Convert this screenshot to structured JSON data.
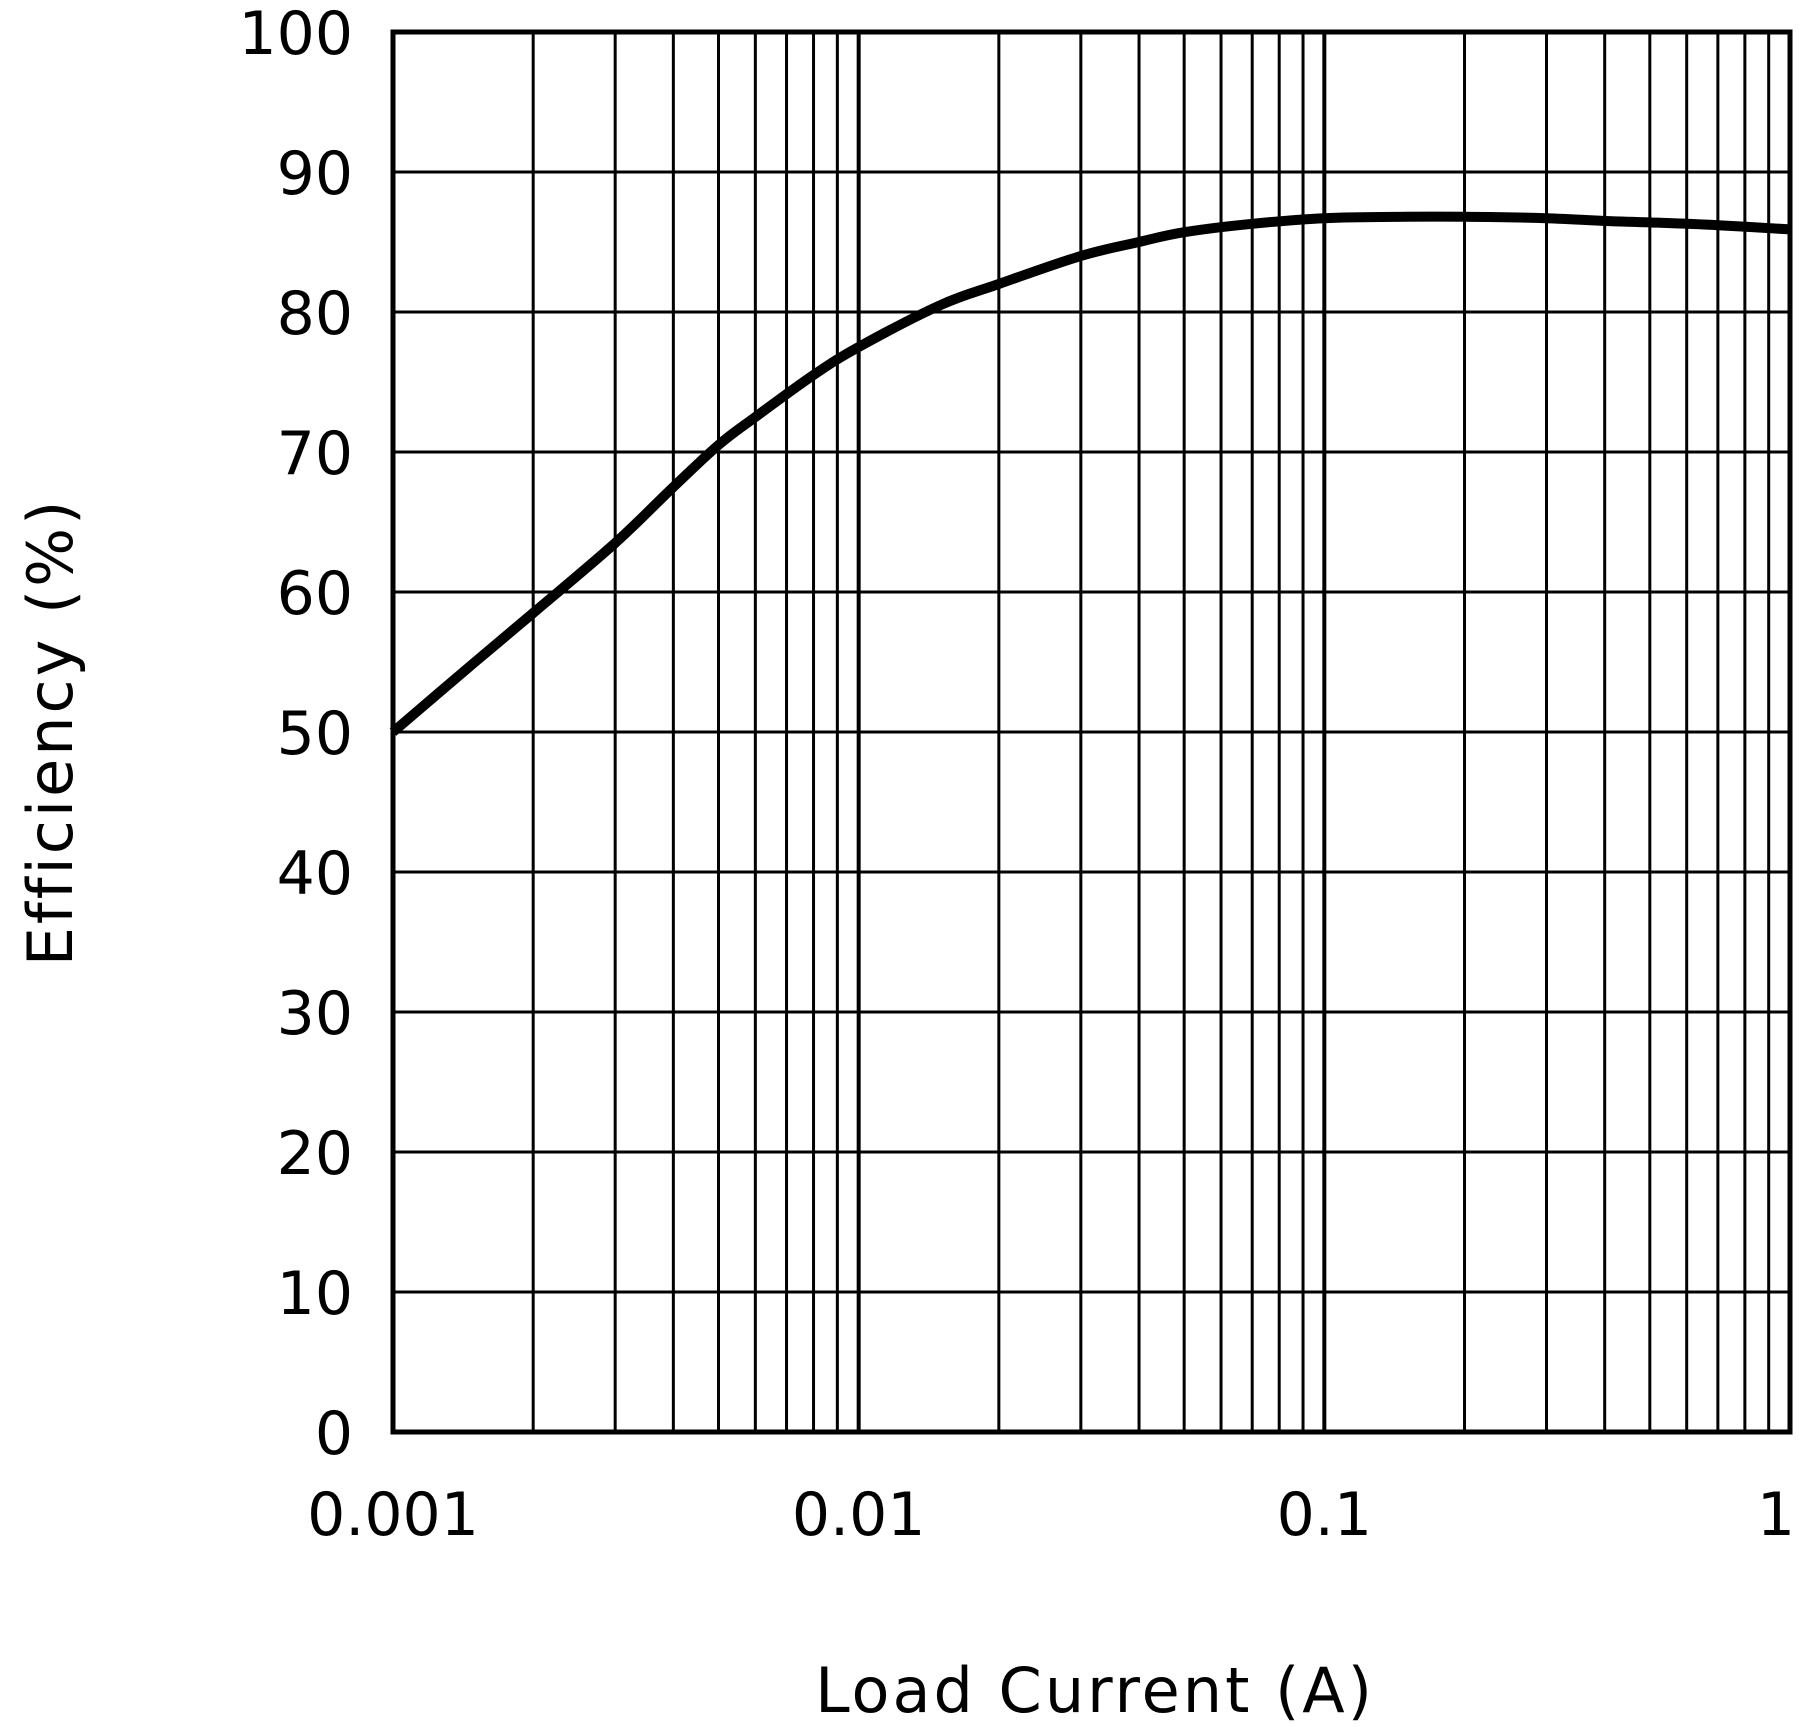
{
  "chart_data": {
    "type": "line",
    "title": "",
    "xlabel": "Load Current (A)",
    "ylabel": "Efficiency (%)",
    "x_scale": "log",
    "xlim": [
      0.001,
      1
    ],
    "ylim": [
      0,
      100
    ],
    "grid": true,
    "x_ticks": [
      {
        "value": 0.001,
        "label": "0.001"
      },
      {
        "value": 0.01,
        "label": "0.01"
      },
      {
        "value": 0.1,
        "label": "0.1"
      },
      {
        "value": 1,
        "label": "1"
      }
    ],
    "y_ticks": [
      {
        "value": 0,
        "label": "0"
      },
      {
        "value": 10,
        "label": "10"
      },
      {
        "value": 20,
        "label": "20"
      },
      {
        "value": 30,
        "label": "30"
      },
      {
        "value": 40,
        "label": "40"
      },
      {
        "value": 50,
        "label": "50"
      },
      {
        "value": 60,
        "label": "60"
      },
      {
        "value": 70,
        "label": "70"
      },
      {
        "value": 80,
        "label": "80"
      },
      {
        "value": 90,
        "label": "90"
      },
      {
        "value": 100,
        "label": "100"
      }
    ],
    "series": [
      {
        "x": [
          0.001,
          0.0015,
          0.002,
          0.003,
          0.004,
          0.005,
          0.006,
          0.008,
          0.01,
          0.015,
          0.02,
          0.03,
          0.04,
          0.05,
          0.07,
          0.1,
          0.15,
          0.2,
          0.3,
          0.4,
          0.5,
          0.7,
          1.0
        ],
        "y": [
          50,
          55,
          58.5,
          63.5,
          67.5,
          70.5,
          72.5,
          75.5,
          77.5,
          80.5,
          82,
          84,
          85,
          85.7,
          86.3,
          86.7,
          86.8,
          86.8,
          86.7,
          86.5,
          86.4,
          86.2,
          85.9
        ]
      }
    ]
  },
  "colors": {
    "background": "#ffffff",
    "grid": "#000000",
    "series": "#000000"
  }
}
